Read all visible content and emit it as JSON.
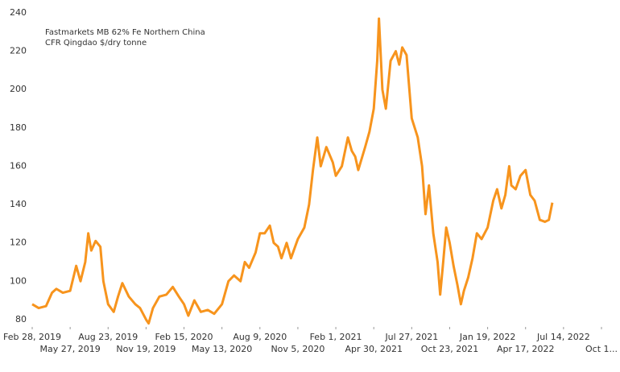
{
  "chart_data": {
    "type": "line",
    "title": "Fastmarkets MB 62% Fe Northern China",
    "subtitle": "CFR Qingdao $/dry tonne",
    "x": [
      "2019-02-28",
      "2019-03-15",
      "2019-04-01",
      "2019-04-15",
      "2019-04-25",
      "2019-05-10",
      "2019-05-27",
      "2019-06-10",
      "2019-06-20",
      "2019-07-01",
      "2019-07-08",
      "2019-07-15",
      "2019-07-25",
      "2019-08-05",
      "2019-08-12",
      "2019-08-23",
      "2019-09-05",
      "2019-09-15",
      "2019-09-25",
      "2019-10-10",
      "2019-10-25",
      "2019-11-05",
      "2019-11-19",
      "2019-11-25",
      "2019-12-05",
      "2019-12-20",
      "2020-01-05",
      "2020-01-20",
      "2020-02-03",
      "2020-02-15",
      "2020-02-25",
      "2020-03-10",
      "2020-03-25",
      "2020-04-10",
      "2020-04-25",
      "2020-05-13",
      "2020-05-28",
      "2020-06-10",
      "2020-06-25",
      "2020-07-05",
      "2020-07-15",
      "2020-07-30",
      "2020-08-09",
      "2020-08-20",
      "2020-09-01",
      "2020-09-10",
      "2020-09-20",
      "2020-09-28",
      "2020-10-10",
      "2020-10-20",
      "2020-11-05",
      "2020-11-20",
      "2020-12-01",
      "2020-12-10",
      "2020-12-20",
      "2020-12-28",
      "2021-01-10",
      "2021-01-25",
      "2021-02-01",
      "2021-02-15",
      "2021-03-01",
      "2021-03-10",
      "2021-03-18",
      "2021-03-25",
      "2021-04-10",
      "2021-04-20",
      "2021-04-30",
      "2021-05-08",
      "2021-05-12",
      "2021-05-20",
      "2021-05-28",
      "2021-06-08",
      "2021-06-20",
      "2021-06-28",
      "2021-07-05",
      "2021-07-15",
      "2021-07-27",
      "2021-08-10",
      "2021-08-20",
      "2021-08-28",
      "2021-09-05",
      "2021-09-15",
      "2021-09-25",
      "2021-10-01",
      "2021-10-08",
      "2021-10-15",
      "2021-10-23",
      "2021-11-01",
      "2021-11-10",
      "2021-11-18",
      "2021-11-25",
      "2021-12-05",
      "2021-12-15",
      "2021-12-25",
      "2022-01-05",
      "2022-01-19",
      "2022-02-01",
      "2022-02-10",
      "2022-02-20",
      "2022-03-01",
      "2022-03-10",
      "2022-03-15",
      "2022-03-25",
      "2022-04-05",
      "2022-04-17",
      "2022-04-28",
      "2022-05-08",
      "2022-05-20",
      "2022-06-01",
      "2022-06-10",
      "2022-06-18"
    ],
    "series": [
      {
        "color": "#f7941d",
        "values": [
          88,
          86,
          87,
          94,
          96,
          94,
          95,
          108,
          100,
          110,
          125,
          116,
          121,
          118,
          100,
          88,
          84,
          92,
          99,
          92,
          88,
          86,
          80,
          78,
          86,
          92,
          93,
          97,
          92,
          88,
          82,
          90,
          84,
          85,
          83,
          88,
          100,
          103,
          100,
          110,
          107,
          115,
          125,
          125,
          129,
          120,
          118,
          112,
          120,
          112,
          122,
          128,
          140,
          158,
          175,
          160,
          170,
          162,
          155,
          160,
          175,
          168,
          165,
          158,
          170,
          178,
          190,
          215,
          237,
          200,
          190,
          215,
          220,
          213,
          222,
          218,
          185,
          175,
          160,
          135,
          150,
          125,
          110,
          93,
          110,
          128,
          120,
          108,
          98,
          88,
          95,
          102,
          112,
          125,
          122,
          128,
          142,
          148,
          138,
          145,
          160,
          150,
          148,
          155,
          158,
          145,
          142,
          132,
          131,
          132,
          141
        ]
      }
    ],
    "xlim": [
      "2019-02-28",
      "2022-10-10"
    ],
    "xticks": [
      {
        "value": "2019-02-28",
        "label": "Feb 28, 2019"
      },
      {
        "value": "2019-05-27",
        "label": "May 27, 2019"
      },
      {
        "value": "2019-08-23",
        "label": "Aug 23, 2019"
      },
      {
        "value": "2019-11-19",
        "label": "Nov 19, 2019"
      },
      {
        "value": "2020-02-15",
        "label": "Feb 15, 2020"
      },
      {
        "value": "2020-05-13",
        "label": "May 13, 2020"
      },
      {
        "value": "2020-08-09",
        "label": "Aug 9, 2020"
      },
      {
        "value": "2020-11-05",
        "label": "Nov 5, 2020"
      },
      {
        "value": "2021-02-01",
        "label": "Feb 1, 2021"
      },
      {
        "value": "2021-04-30",
        "label": "Apr 30, 2021"
      },
      {
        "value": "2021-07-27",
        "label": "Jul 27, 2021"
      },
      {
        "value": "2021-10-23",
        "label": "Oct 23, 2021"
      },
      {
        "value": "2022-01-19",
        "label": "Jan 19, 2022"
      },
      {
        "value": "2022-04-17",
        "label": "Apr 17, 2022"
      },
      {
        "value": "2022-07-14",
        "label": "Jul 14, 2022"
      },
      {
        "value": "2022-10-10",
        "label": "Oct 1..."
      }
    ],
    "ylim": [
      77,
      240
    ],
    "yticks": [
      80,
      100,
      120,
      140,
      160,
      180,
      200,
      220,
      240
    ],
    "grid": false
  }
}
